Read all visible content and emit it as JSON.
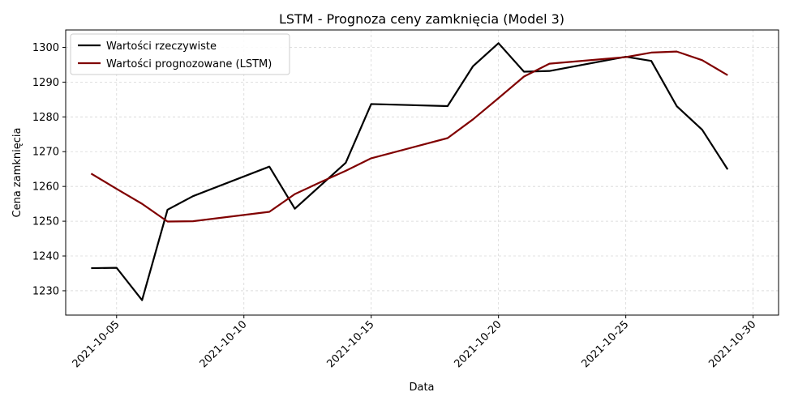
{
  "chart_data": {
    "type": "line",
    "title": "LSTM - Prognoza ceny zamknięcia (Model 3)",
    "xlabel": "Data",
    "ylabel": "Cena zamknięcia",
    "x_ticks": [
      "2021-10-05",
      "2021-10-10",
      "2021-10-15",
      "2021-10-20",
      "2021-10-25",
      "2021-10-30"
    ],
    "y_ticks": [
      1230,
      1240,
      1250,
      1260,
      1270,
      1280,
      1290,
      1300
    ],
    "xlim": [
      "2021-10-03",
      "2021-10-31"
    ],
    "ylim": [
      1223,
      1305
    ],
    "grid": true,
    "legend_position": "top-left",
    "x": [
      "2021-10-04",
      "2021-10-05",
      "2021-10-06",
      "2021-10-07",
      "2021-10-08",
      "2021-10-11",
      "2021-10-12",
      "2021-10-13",
      "2021-10-14",
      "2021-10-15",
      "2021-10-18",
      "2021-10-19",
      "2021-10-20",
      "2021-10-21",
      "2021-10-22",
      "2021-10-25",
      "2021-10-26",
      "2021-10-27",
      "2021-10-28",
      "2021-10-29"
    ],
    "series": [
      {
        "name": "Wartości rzeczywiste",
        "color": "#000000",
        "values": [
          1236.5,
          1236.6,
          1227.3,
          1253.3,
          1257.2,
          1265.7,
          1253.6,
          1260.2,
          1266.8,
          1283.7,
          1283.1,
          1294.6,
          1301.2,
          1293.0,
          1293.2,
          1297.3,
          1296.1,
          1283.1,
          1276.3,
          1264.9
        ]
      },
      {
        "name": "Wartości prognozowane (LSTM)",
        "color": "#800000",
        "values": [
          1263.7,
          1259.3,
          1255.0,
          1249.9,
          1250.0,
          1252.7,
          1257.8,
          1261.2,
          1264.5,
          1268.1,
          1273.9,
          1279.3,
          1285.4,
          1291.6,
          1295.3,
          1297.2,
          1298.5,
          1298.8,
          1296.3,
          1292.0
        ]
      }
    ]
  }
}
